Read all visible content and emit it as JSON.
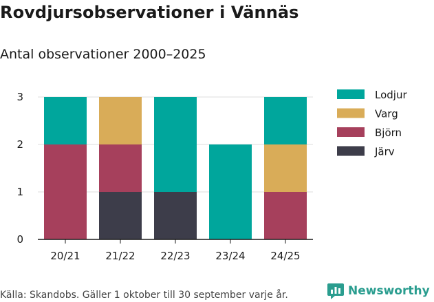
{
  "header": {
    "title": "Rovdjursobservationer i Vännäs",
    "subtitle": "Antal observationer 2000–2025"
  },
  "footer": {
    "source": "Källa: Skandobs. Gäller 1 oktober till 30 september varje år.",
    "brand": "Newsworthy"
  },
  "colors": {
    "Lodjur": "#00a69c",
    "Varg": "#d9ac58",
    "Björn": "#a6405c",
    "Järv": "#3d3d4a",
    "brand": "#2a9d8f"
  },
  "chart_data": {
    "type": "bar",
    "stacked": true,
    "title": "Rovdjursobservationer i Vännäs",
    "subtitle": "Antal observationer 2000–2025",
    "xlabel": "",
    "ylabel": "",
    "categories": [
      "20/21",
      "21/22",
      "22/23",
      "23/24",
      "24/25"
    ],
    "yticks": [
      0,
      1,
      2,
      3
    ],
    "ylim": [
      0,
      3
    ],
    "grid": true,
    "legend_position": "right",
    "series": [
      {
        "name": "Järv",
        "values": [
          0,
          1,
          1,
          0,
          0
        ]
      },
      {
        "name": "Björn",
        "values": [
          2,
          1,
          0,
          0,
          1
        ]
      },
      {
        "name": "Varg",
        "values": [
          0,
          1,
          0,
          0,
          1
        ]
      },
      {
        "name": "Lodjur",
        "values": [
          1,
          0,
          2,
          2,
          1
        ]
      }
    ],
    "legend_order": [
      "Lodjur",
      "Varg",
      "Björn",
      "Järv"
    ]
  }
}
